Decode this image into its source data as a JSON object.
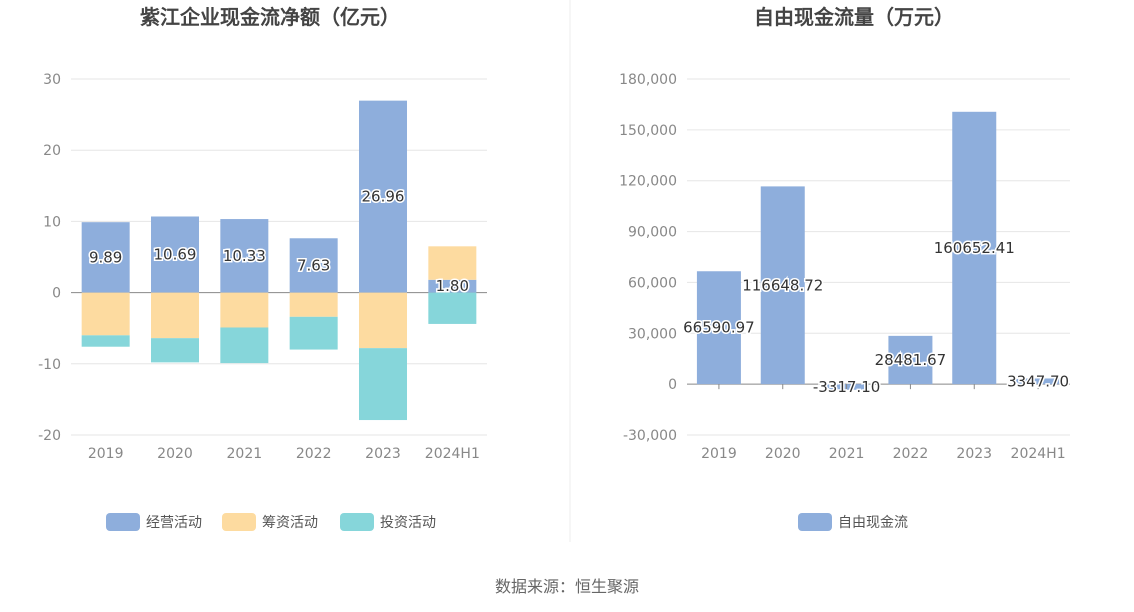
{
  "source_text": "数据来源：恒生聚源",
  "colors": {
    "operating": "#8eaedc",
    "financing": "#fddba0",
    "investing": "#86d6da",
    "free_cash_flow": "#8eaedc",
    "grid": "#e6e6e6",
    "zero_axis": "#888888",
    "divider": "#eeeeee"
  },
  "chart_data": [
    {
      "type": "bar",
      "stacked": true,
      "title": "紫江企业现金流净额（亿元）",
      "categories": [
        "2019",
        "2020",
        "2021",
        "2022",
        "2023",
        "2024H1"
      ],
      "ylim": [
        -20,
        30
      ],
      "yticks": [
        30,
        20,
        10,
        0,
        -10,
        -20
      ],
      "ytick_labels": [
        "30",
        "20",
        "10",
        "0",
        "-10",
        "-20"
      ],
      "grid": true,
      "legend_position": "bottom",
      "series": [
        {
          "name": "经营活动",
          "color_key": "operating",
          "values": [
            9.89,
            10.69,
            10.33,
            7.63,
            26.96,
            1.8
          ],
          "labels": [
            "9.89",
            "10.69",
            "10.33",
            "7.63",
            "26.96",
            "1.80"
          ]
        },
        {
          "name": "筹资活动",
          "color_key": "financing",
          "values": [
            -6.0,
            -6.4,
            -4.9,
            -3.4,
            -7.8,
            4.7
          ]
        },
        {
          "name": "投资活动",
          "color_key": "investing",
          "values": [
            -1.6,
            -3.4,
            -5.0,
            -4.6,
            -10.1,
            -4.4
          ]
        }
      ]
    },
    {
      "type": "bar",
      "title": "自由现金流量（万元）",
      "categories": [
        "2019",
        "2020",
        "2021",
        "2022",
        "2023",
        "2024H1"
      ],
      "ylim": [
        -30000,
        180000
      ],
      "yticks": [
        180000,
        150000,
        120000,
        90000,
        60000,
        30000,
        0,
        -30000
      ],
      "ytick_labels": [
        "180,000",
        "150,000",
        "120,000",
        "90,000",
        "60,000",
        "30,000",
        "0",
        "-30,000"
      ],
      "grid": true,
      "legend_position": "bottom",
      "series": [
        {
          "name": "自由现金流",
          "color_key": "free_cash_flow",
          "values": [
            66590.97,
            116648.72,
            -3317.1,
            28481.67,
            160652.41,
            3347.7
          ],
          "labels": [
            "66590.97",
            "116648.72",
            "-3317.10",
            "28481.67",
            "160652.41",
            "3347.70"
          ]
        }
      ]
    }
  ]
}
